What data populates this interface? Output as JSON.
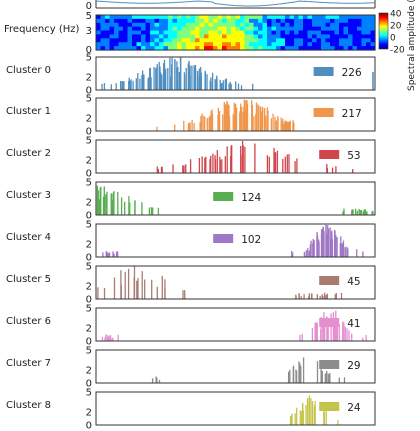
{
  "chart_data": {
    "type": "bar",
    "waveform": {
      "ytick": "0"
    },
    "spectrogram": {
      "ylabel": "Frequency (Hz)",
      "yticks": [
        "5",
        "3",
        "0"
      ],
      "colorbar_label": "Spectral amplitude (dB",
      "colorbar_ticks": [
        "40",
        "20",
        "0",
        "-20"
      ],
      "colorbar_range": [
        -20,
        40
      ],
      "colorscale": [
        "#00007f",
        "#0000ff",
        "#007fff",
        "#00ffff",
        "#7fff7f",
        "#ffff00",
        "#ff7f00",
        "#ff0000",
        "#7f0000"
      ]
    },
    "histogram_yticks": [
      "5",
      "2",
      "0"
    ],
    "ylim": [
      0,
      5
    ],
    "clusters": [
      {
        "label": "Cluster 0",
        "count": "226",
        "color": "#4f8fc0",
        "legend_x": 0.78,
        "peak": 0.28,
        "spread": 0.12,
        "n": 110,
        "edge": true
      },
      {
        "label": "Cluster 1",
        "count": "217",
        "color": "#f0964a",
        "legend_x": 0.78,
        "peak": 0.52,
        "spread": 0.12,
        "n": 110,
        "cut": 0.71
      },
      {
        "label": "Cluster 2",
        "count": "53",
        "color": "#d1454b",
        "legend_x": 0.8,
        "peak": 0.55,
        "spread": 0.16,
        "n": 50
      },
      {
        "label": "Cluster 3",
        "count": "124",
        "color": "#58ad52",
        "legend_x": 0.42,
        "peak": 0.02,
        "spread": 0.1,
        "n": 90,
        "twin": 0.95
      },
      {
        "label": "Cluster 4",
        "count": "102",
        "color": "#9f77c4",
        "legend_x": 0.42,
        "peak": 0.83,
        "spread": 0.05,
        "n": 80,
        "spike": 0.02
      },
      {
        "label": "Cluster 5",
        "count": "45",
        "color": "#a97c72",
        "legend_x": 0.8,
        "peak": 0.15,
        "spread": 0.12,
        "n": 45,
        "twin": 0.8
      },
      {
        "label": "Cluster 6",
        "count": "41",
        "color": "#e58ed0",
        "legend_x": 0.8,
        "peak": 0.84,
        "spread": 0.05,
        "n": 42,
        "spike": 0.02
      },
      {
        "label": "Cluster 7",
        "count": "29",
        "color": "#8c8c8c",
        "legend_x": 0.8,
        "peak": 0.76,
        "spread": 0.05,
        "n": 30,
        "spike": 0.2
      },
      {
        "label": "Cluster 8",
        "count": "24",
        "color": "#c5c44a",
        "legend_x": 0.8,
        "peak": 0.77,
        "spread": 0.05,
        "n": 26
      }
    ]
  }
}
